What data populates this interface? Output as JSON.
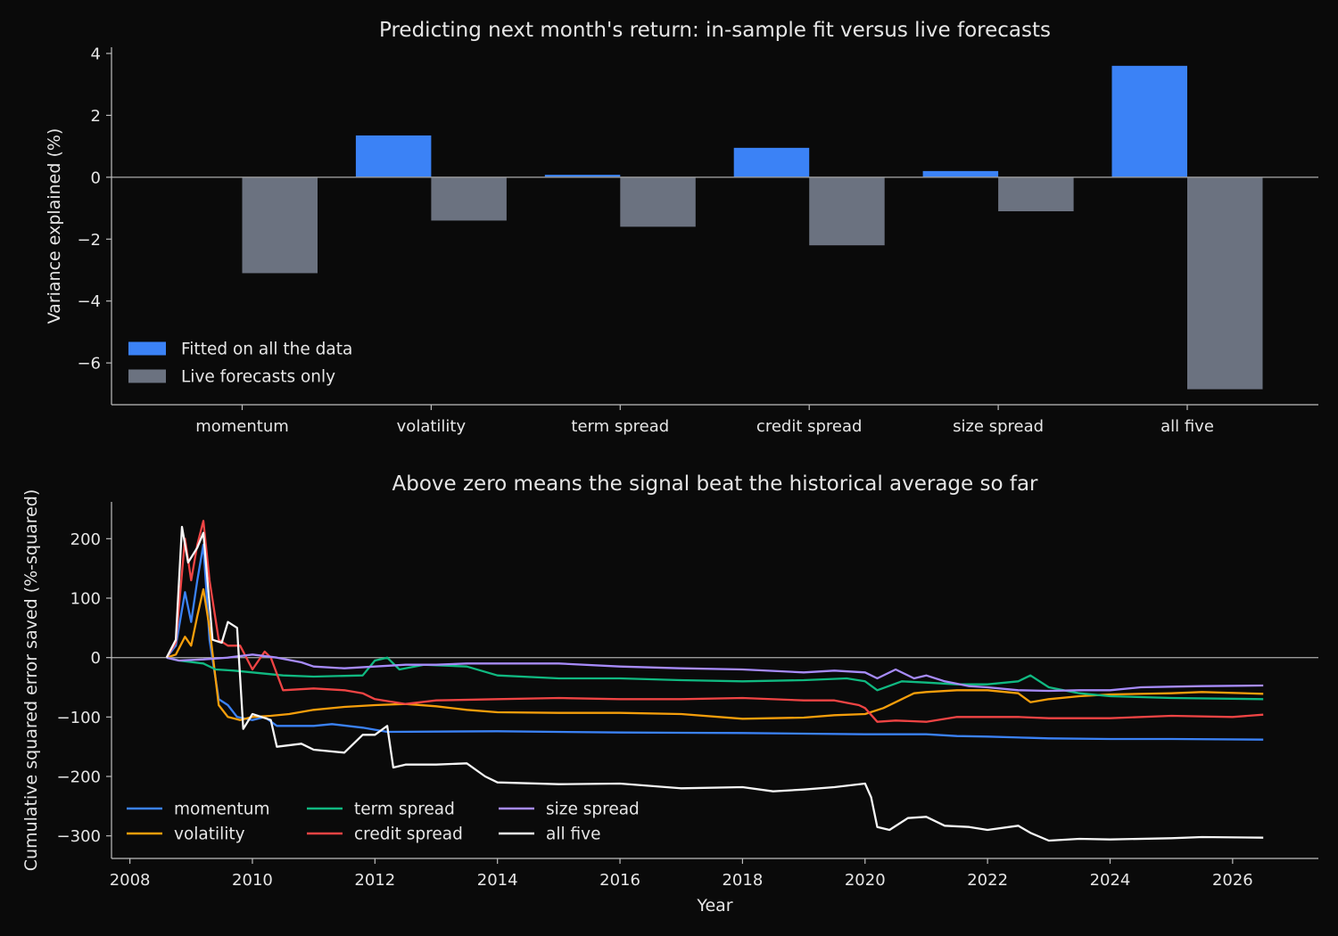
{
  "chart_data": [
    {
      "type": "bar",
      "title": "Predicting next month's return: in-sample fit versus live forecasts",
      "xlabel": "",
      "ylabel": "Variance explained (%)",
      "ylim": [
        -7.35,
        4.2
      ],
      "yticks": [
        -6,
        -4,
        -2,
        0,
        2,
        4
      ],
      "ytick_labels": [
        "−6",
        "−4",
        "−2",
        "0",
        "2",
        "4"
      ],
      "categories": [
        "momentum",
        "volatility",
        "term spread",
        "credit spread",
        "size spread",
        "all five"
      ],
      "series": [
        {
          "name": "Fitted on all the data",
          "color": "#3b82f6",
          "values": [
            -0.02,
            1.35,
            0.08,
            0.95,
            0.2,
            3.6
          ]
        },
        {
          "name": "Live forecasts only",
          "color": "#6b7280",
          "values": [
            -3.1,
            -1.4,
            -1.6,
            -2.2,
            -1.1,
            -6.85
          ]
        }
      ],
      "legend": "lower-left",
      "grid": false
    },
    {
      "type": "line",
      "title": "Above zero means the signal beat the historical average so far",
      "xlabel": "Year",
      "ylabel": "Cumulative squared error saved (%-squared)",
      "xlim": [
        2007.7,
        2027.4
      ],
      "ylim": [
        -338,
        262
      ],
      "xticks": [
        2008,
        2010,
        2012,
        2014,
        2016,
        2018,
        2020,
        2022,
        2024,
        2026
      ],
      "yticks": [
        -300,
        -200,
        -100,
        0,
        100,
        200
      ],
      "ytick_labels": [
        "−300",
        "−200",
        "−100",
        "0",
        "100",
        "200"
      ],
      "legend": "lower-left",
      "grid": false,
      "series": [
        {
          "name": "momentum",
          "color": "#3b82f6",
          "points": [
            [
              2008.6,
              0
            ],
            [
              2008.75,
              20
            ],
            [
              2008.9,
              110
            ],
            [
              2009.0,
              60
            ],
            [
              2009.1,
              130
            ],
            [
              2009.2,
              190
            ],
            [
              2009.3,
              30
            ],
            [
              2009.45,
              -70
            ],
            [
              2009.6,
              -80
            ],
            [
              2009.75,
              -100
            ],
            [
              2010.0,
              -105
            ],
            [
              2010.2,
              -100
            ],
            [
              2010.4,
              -115
            ],
            [
              2011.0,
              -115
            ],
            [
              2011.3,
              -112
            ],
            [
              2011.8,
              -118
            ],
            [
              2012.2,
              -125
            ],
            [
              2014.0,
              -124
            ],
            [
              2016.0,
              -126
            ],
            [
              2018.0,
              -127
            ],
            [
              2020.0,
              -129
            ],
            [
              2021.0,
              -129
            ],
            [
              2021.5,
              -132
            ],
            [
              2022.0,
              -133
            ],
            [
              2022.7,
              -135
            ],
            [
              2023.0,
              -136
            ],
            [
              2024.0,
              -137
            ],
            [
              2025.0,
              -137
            ],
            [
              2026.5,
              -138
            ]
          ]
        },
        {
          "name": "volatility",
          "color": "#f59e0b",
          "points": [
            [
              2008.6,
              0
            ],
            [
              2008.75,
              5
            ],
            [
              2008.9,
              35
            ],
            [
              2009.0,
              20
            ],
            [
              2009.1,
              70
            ],
            [
              2009.2,
              115
            ],
            [
              2009.3,
              50
            ],
            [
              2009.45,
              -80
            ],
            [
              2009.6,
              -100
            ],
            [
              2009.8,
              -105
            ],
            [
              2010.0,
              -100
            ],
            [
              2010.3,
              -98
            ],
            [
              2010.6,
              -95
            ],
            [
              2011.0,
              -88
            ],
            [
              2011.5,
              -83
            ],
            [
              2012.0,
              -80
            ],
            [
              2012.5,
              -78
            ],
            [
              2013.0,
              -82
            ],
            [
              2013.5,
              -88
            ],
            [
              2014.0,
              -92
            ],
            [
              2015.0,
              -93
            ],
            [
              2016.0,
              -93
            ],
            [
              2017.0,
              -95
            ],
            [
              2018.0,
              -103
            ],
            [
              2019.0,
              -101
            ],
            [
              2019.5,
              -97
            ],
            [
              2020.0,
              -95
            ],
            [
              2020.3,
              -85
            ],
            [
              2020.6,
              -70
            ],
            [
              2020.8,
              -60
            ],
            [
              2021.0,
              -58
            ],
            [
              2021.5,
              -55
            ],
            [
              2022.0,
              -55
            ],
            [
              2022.5,
              -60
            ],
            [
              2022.7,
              -75
            ],
            [
              2023.0,
              -70
            ],
            [
              2023.5,
              -65
            ],
            [
              2024.0,
              -62
            ],
            [
              2025.0,
              -60
            ],
            [
              2025.5,
              -58
            ],
            [
              2026.5,
              -61
            ]
          ]
        },
        {
          "name": "term spread",
          "color": "#10b981",
          "points": [
            [
              2008.6,
              0
            ],
            [
              2008.8,
              -5
            ],
            [
              2009.2,
              -10
            ],
            [
              2009.4,
              -20
            ],
            [
              2009.7,
              -22
            ],
            [
              2010.0,
              -25
            ],
            [
              2010.5,
              -30
            ],
            [
              2011.0,
              -32
            ],
            [
              2011.8,
              -30
            ],
            [
              2012.0,
              -5
            ],
            [
              2012.2,
              0
            ],
            [
              2012.4,
              -20
            ],
            [
              2012.8,
              -12
            ],
            [
              2013.5,
              -15
            ],
            [
              2014.0,
              -30
            ],
            [
              2015.0,
              -35
            ],
            [
              2016.0,
              -35
            ],
            [
              2017.0,
              -38
            ],
            [
              2018.0,
              -40
            ],
            [
              2019.0,
              -38
            ],
            [
              2019.7,
              -35
            ],
            [
              2020.0,
              -40
            ],
            [
              2020.2,
              -55
            ],
            [
              2020.6,
              -40
            ],
            [
              2021.0,
              -42
            ],
            [
              2021.5,
              -45
            ],
            [
              2022.0,
              -45
            ],
            [
              2022.5,
              -40
            ],
            [
              2022.7,
              -30
            ],
            [
              2023.0,
              -50
            ],
            [
              2023.5,
              -60
            ],
            [
              2024.0,
              -65
            ],
            [
              2025.0,
              -68
            ],
            [
              2026.5,
              -70
            ]
          ]
        },
        {
          "name": "credit spread",
          "color": "#ef4444",
          "points": [
            [
              2008.6,
              0
            ],
            [
              2008.75,
              25
            ],
            [
              2008.9,
              200
            ],
            [
              2009.0,
              130
            ],
            [
              2009.1,
              190
            ],
            [
              2009.2,
              230
            ],
            [
              2009.3,
              130
            ],
            [
              2009.45,
              30
            ],
            [
              2009.6,
              20
            ],
            [
              2009.8,
              20
            ],
            [
              2010.0,
              -20
            ],
            [
              2010.2,
              10
            ],
            [
              2010.3,
              0
            ],
            [
              2010.5,
              -55
            ],
            [
              2011.0,
              -52
            ],
            [
              2011.5,
              -55
            ],
            [
              2011.8,
              -60
            ],
            [
              2012.0,
              -70
            ],
            [
              2012.5,
              -78
            ],
            [
              2013.0,
              -72
            ],
            [
              2014.0,
              -70
            ],
            [
              2015.0,
              -68
            ],
            [
              2016.0,
              -70
            ],
            [
              2017.0,
              -70
            ],
            [
              2018.0,
              -68
            ],
            [
              2019.0,
              -72
            ],
            [
              2019.5,
              -72
            ],
            [
              2019.9,
              -80
            ],
            [
              2020.0,
              -85
            ],
            [
              2020.2,
              -108
            ],
            [
              2020.5,
              -106
            ],
            [
              2021.0,
              -108
            ],
            [
              2021.5,
              -100
            ],
            [
              2022.0,
              -100
            ],
            [
              2022.5,
              -100
            ],
            [
              2023.0,
              -102
            ],
            [
              2024.0,
              -102
            ],
            [
              2025.0,
              -98
            ],
            [
              2026.0,
              -100
            ],
            [
              2026.5,
              -96
            ]
          ]
        },
        {
          "name": "size spread",
          "color": "#a78bfa",
          "points": [
            [
              2008.6,
              0
            ],
            [
              2008.8,
              -5
            ],
            [
              2009.2,
              -3
            ],
            [
              2009.6,
              0
            ],
            [
              2010.0,
              5
            ],
            [
              2010.4,
              0
            ],
            [
              2010.8,
              -8
            ],
            [
              2011.0,
              -15
            ],
            [
              2011.5,
              -18
            ],
            [
              2012.0,
              -15
            ],
            [
              2012.5,
              -12
            ],
            [
              2013.0,
              -12
            ],
            [
              2013.5,
              -10
            ],
            [
              2014.0,
              -10
            ],
            [
              2015.0,
              -10
            ],
            [
              2016.0,
              -15
            ],
            [
              2017.0,
              -18
            ],
            [
              2018.0,
              -20
            ],
            [
              2019.0,
              -25
            ],
            [
              2019.5,
              -22
            ],
            [
              2020.0,
              -25
            ],
            [
              2020.2,
              -35
            ],
            [
              2020.5,
              -20
            ],
            [
              2020.8,
              -35
            ],
            [
              2021.0,
              -30
            ],
            [
              2021.3,
              -40
            ],
            [
              2021.7,
              -48
            ],
            [
              2022.0,
              -50
            ],
            [
              2022.5,
              -55
            ],
            [
              2023.0,
              -56
            ],
            [
              2023.5,
              -55
            ],
            [
              2024.0,
              -55
            ],
            [
              2024.5,
              -50
            ],
            [
              2025.0,
              -49
            ],
            [
              2025.5,
              -48
            ],
            [
              2026.5,
              -47
            ]
          ]
        },
        {
          "name": "all five",
          "color": "#f5f5f5",
          "points": [
            [
              2008.6,
              0
            ],
            [
              2008.75,
              30
            ],
            [
              2008.85,
              220
            ],
            [
              2008.95,
              160
            ],
            [
              2009.1,
              185
            ],
            [
              2009.2,
              210
            ],
            [
              2009.35,
              30
            ],
            [
              2009.5,
              25
            ],
            [
              2009.6,
              60
            ],
            [
              2009.75,
              50
            ],
            [
              2009.85,
              -120
            ],
            [
              2010.0,
              -95
            ],
            [
              2010.3,
              -105
            ],
            [
              2010.4,
              -150
            ],
            [
              2010.8,
              -145
            ],
            [
              2011.0,
              -155
            ],
            [
              2011.5,
              -160
            ],
            [
              2011.8,
              -130
            ],
            [
              2012.0,
              -130
            ],
            [
              2012.2,
              -115
            ],
            [
              2012.3,
              -185
            ],
            [
              2012.5,
              -180
            ],
            [
              2013.0,
              -180
            ],
            [
              2013.5,
              -178
            ],
            [
              2013.8,
              -200
            ],
            [
              2014.0,
              -210
            ],
            [
              2015.0,
              -213
            ],
            [
              2016.0,
              -212
            ],
            [
              2017.0,
              -220
            ],
            [
              2018.0,
              -218
            ],
            [
              2018.5,
              -225
            ],
            [
              2019.0,
              -222
            ],
            [
              2019.5,
              -218
            ],
            [
              2020.0,
              -212
            ],
            [
              2020.1,
              -235
            ],
            [
              2020.2,
              -285
            ],
            [
              2020.4,
              -290
            ],
            [
              2020.7,
              -270
            ],
            [
              2021.0,
              -268
            ],
            [
              2021.3,
              -283
            ],
            [
              2021.7,
              -285
            ],
            [
              2022.0,
              -290
            ],
            [
              2022.5,
              -283
            ],
            [
              2022.7,
              -295
            ],
            [
              2023.0,
              -308
            ],
            [
              2023.5,
              -305
            ],
            [
              2024.0,
              -306
            ],
            [
              2025.0,
              -304
            ],
            [
              2025.5,
              -302
            ],
            [
              2026.5,
              -303
            ]
          ]
        }
      ]
    }
  ]
}
